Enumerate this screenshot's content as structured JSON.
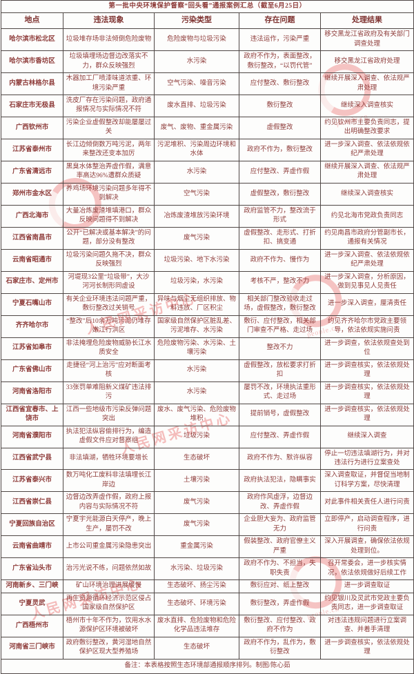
{
  "page": {
    "title": "第一批中央环境保护督察“回头看”通报案例汇总（截至6月25日）",
    "footer_note": "备注：本表格按照生态环境部通报顺序排列。制图/陈心茹",
    "watermark": {
      "text": "人民网采访中心",
      "sub": "people.cn"
    },
    "colors": {
      "title_text": "#94201e",
      "body_text": "#8e3c3a",
      "border": "#4e4644",
      "watermark": "#e86c6c",
      "background": "#fdfdfc"
    }
  },
  "table": {
    "headers": [
      "地点",
      "违法现象",
      "污染类型",
      "存在问题",
      "处理结果"
    ],
    "rows": [
      [
        "哈尔滨市松北区",
        "垃圾堆存场非法倾倒危险废物",
        "危险废物与垃圾污染",
        "违法运作，污染严重",
        "移交黑龙江省政府及有关部门调查处理"
      ],
      [
        "哈尔滨市香坊区",
        "垃圾填埋场边督边改落实不力，群众反映强烈",
        "水污染",
        "政府不作为，表面整改，敷衍整改，“以罚代管”",
        "移交黑龙江省政府处理"
      ],
      [
        "内蒙古林格尔县",
        "木器加工厂喷漆味道浓重、环境污染严重",
        "空气污染、噪音污染",
        "应付整改、敷衍整改",
        "继续开展深入调查、依法规严肃处理"
      ],
      [
        "石家庄市无极县",
        "洗皮厂存在污染问题，政府通报情况与实际情况不符",
        "废水直排、垃圾污染",
        "敷衍整改",
        "继续深入调查核实"
      ],
      [
        "广西钦州市",
        "污染企业虚假整改却能屡屡过关",
        "废气、废物、重金属污染",
        "虚假整改",
        "约见钦州市主要负责同志，提出明确整改要求"
      ],
      [
        "江苏省泰州市",
        "长江边倾倒数万吨污泥，两年来整改还变本加厉",
        "污泥堆积、污染周边环境和水体",
        "政府不作为，敷衍整改",
        "进一步深入调查、依法依规依纪严肃处理"
      ],
      [
        "广东省清远市",
        "黑臭水体整治弄虚作假，满意率高达96%遭群众质疑",
        "水污染",
        "应付整改、弄虚作假",
        "继续开展深入调查、依法规严肃处理"
      ],
      [
        "郑州市金水区",
        "养鸡场环境污染问题多年得不到解决",
        "空气污染",
        "虚假整改，敷衍整改",
        "继续深入调查核实"
      ],
      [
        "广西北海市",
        "大量冶炼废渣堆填港口，群众反映问题得不到解决",
        "冶炼废渣堆放污染环境",
        "政府监管不力，整改流于形式",
        "约见北海市党政负责同志"
      ],
      [
        "江西省南昌市",
        "公开“已解决或基本解决”的问题，部分没有整改",
        "废气污染",
        "虚假整改、走形式、打折扣、搞变通",
        "约见南昌市政府分管副市长，通报有关情况"
      ],
      [
        "云南省昭通市",
        "垃圾污染问题久拖不决，群众反映强烈",
        "垃圾污染、地下水污染",
        "政府不作为、慢作为",
        "进一步深入调查、依法依规依纪严肃处理"
      ],
      [
        "石家庄市、定州市",
        "河堤现3公里“垃圾带”，大沙河河长制形同虚设",
        "垃圾污染，水污染",
        "考核不严，整改不力",
        "进一步深入调查，分析原因，做到见事见人见责任"
      ],
      [
        "宁夏石嘴山市",
        "有关企业环境违法问题严重，敷衍整改过关销号",
        "异味与烟尘无组织排放、物料违放、厂区积尘",
        "相关部门整改验收走过场，虚假整改，敷衍整改",
        "进一步深入调查，厘清责任"
      ],
      [
        "齐齐哈尔市",
        "“整改”后10余万吨污泥仍堆存嫩江行洪区",
        "国家级自然保护区脏乱差、污泥堆存、水污染",
        "敷衍、应付整改，相关部门审查不严格、走过场",
        "约见齐齐哈尔市党政主要领导，依法依规实施问责"
      ],
      [
        "江苏省如皋市",
        "非法掩埋危险废物威胁长江水质安全",
        "危险废物污染、水污染、土壤污染",
        "整改不力",
        "进一步调查，依法依规查处到位"
      ],
      [
        "广东省佛山市",
        "走捷径“河上治污”应对断面考核",
        "水污染",
        "虚假整改，放松要求打折扣",
        "进一步调查核实，依法依规处理"
      ],
      [
        "河南省洛阳市",
        "33张罚单难阻新义煤矿违法排污",
        "水污染",
        "屡罚不改，环境执法重形式、走过场",
        "进一步调查核实，依法依规处理"
      ],
      [
        "江西省宜春市、上饶市",
        "江西一些地级市污染反弹问题突出",
        "废水、废气污染、危险废物堆积",
        "提前销号，虚假整改",
        "进一步调查核实，依法依规处理"
      ],
      [
        "河南省濮阳市",
        "执法犯法纵容偷排行为，编造虚假文件应对督察组",
        "垃圾污染",
        "应付整改、弄虚作假",
        "继续深入调查"
      ],
      [
        "江西省武宁县",
        "非法填湖，牺牲环境要增长",
        "生态破坏",
        "政府不作为、默许纵容",
        "停止一切违法填湖行为，并对违法行为进行立案查处"
      ],
      [
        "江苏省泰兴市",
        "数万吨化工废料非法填埋长江岸边",
        "土壤污染",
        "政府执法犯法，隐瞒事实",
        "深入调查取证，并督促当地制订科学方案，尽快清理"
      ],
      [
        "江西省崇仁县",
        "边督边改弄虚作假，政府上报内容与实际情况不符",
        "废气污染",
        "政府作风虚浮，边督边改、弄虚作假",
        "对此事件相关责任人进行问责"
      ],
      [
        "宁夏回族自治区",
        "宁夏宇光能源白天停产，晚上生产，屡罚不改",
        "废气污染",
        "企业胆大妄为、政府监管无力",
        "立即停产，启动调查程序，进行问责"
      ],
      [
        "云南省曲靖市",
        "上市公司重金属污染隐患突出",
        "重金属污染",
        "假装整改、政府官僚主义严重",
        "深入开展调查，确保依法依规处理到位。"
      ],
      [
        "广东省汕头市",
        "治污光说不练，问题依然如故",
        "水污染、垃圾污染",
        "政府不作为、不担当，失职失责",
        "召开常委会，进一步核实情况，依法依规做好后续工作"
      ],
      [
        "河南新乡、三门峡",
        "矿山环境治理进展缓慢",
        "生态破坏、扬尘污染",
        "敷衍应对、纸上整改",
        "进一步调查取证"
      ],
      [
        "宁夏灵武",
        "再生资源循环经济示范区侵占国家级自然保护区",
        "生态破坏、环境污染",
        "敷衍整改，弄虚作假",
        "约见银川及灵武市党政主要负责同志，进一步调查取证"
      ],
      [
        "广西梧州市",
        "梧州市十年不作为，饮用水水源保护区环境被破坏",
        "废水直排、危险废物和危险化学品违法堆存",
        "敷衍整改、应付整改、政府不作为",
        "对违法违规问题进行立案调查、并着手清理"
      ],
      [
        "河南省三门峡市",
        "政府敷衍整改，黄河湿地自然保护区现大型养殖场",
        "生态破坏",
        "政府不作为，乱作为，敷衍整改",
        "进一步调查核实，依法依规处理"
      ]
    ]
  }
}
